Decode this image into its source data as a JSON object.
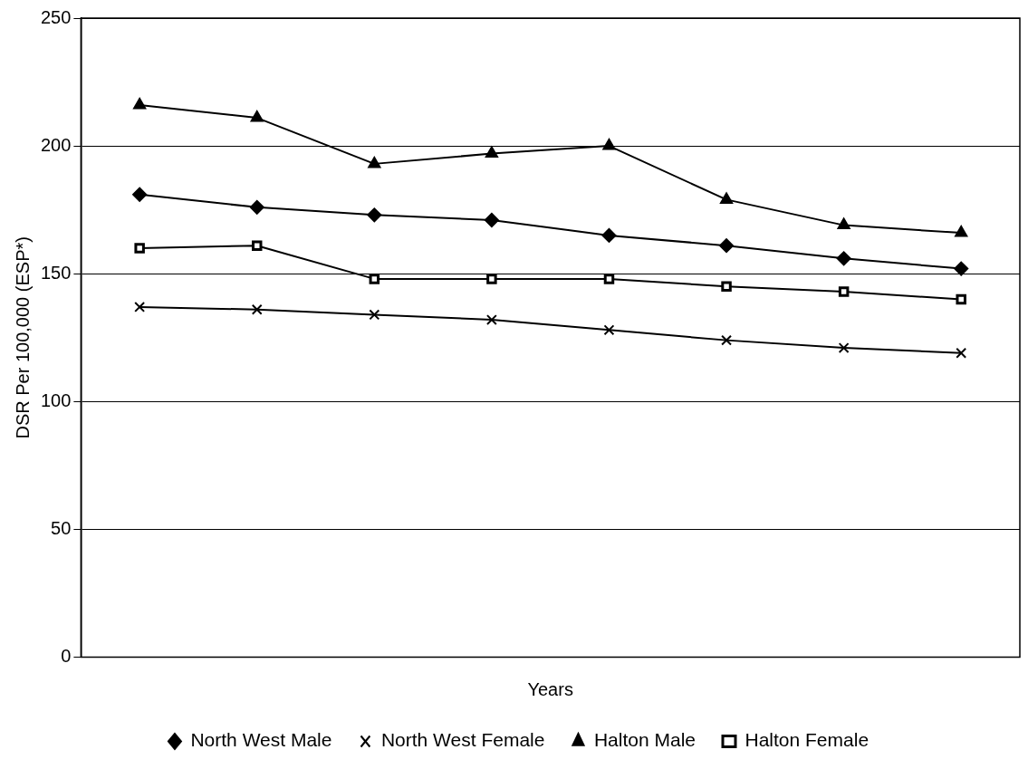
{
  "chart_data": {
    "type": "line",
    "xlabel": "Years",
    "ylabel": "DSR Per 100,000 (ESP*)",
    "categories": [
      null,
      null,
      null,
      null,
      null,
      null,
      null,
      null
    ],
    "series": [
      {
        "name": "North West Male",
        "color": "#000000",
        "marker": "diamond",
        "values": [
          181,
          176,
          173,
          171,
          165,
          161,
          156,
          152
        ]
      },
      {
        "name": "North West Female",
        "color": "#000000",
        "marker": "cross",
        "values": [
          137,
          136,
          134,
          132,
          128,
          124,
          121,
          119
        ]
      },
      {
        "name": "Halton Male",
        "color": "#000000",
        "marker": "triangle",
        "values": [
          216,
          211,
          193,
          197,
          200,
          179,
          169,
          166
        ]
      },
      {
        "name": "Halton Female",
        "color": "#000000",
        "marker": "square",
        "values": [
          160,
          161,
          148,
          148,
          148,
          145,
          143,
          140
        ]
      }
    ],
    "ylim": [
      0,
      250
    ],
    "yticks": [
      0,
      50,
      100,
      150,
      200,
      250
    ],
    "grid": "y",
    "legend": "bottom",
    "line_style": "solid"
  }
}
